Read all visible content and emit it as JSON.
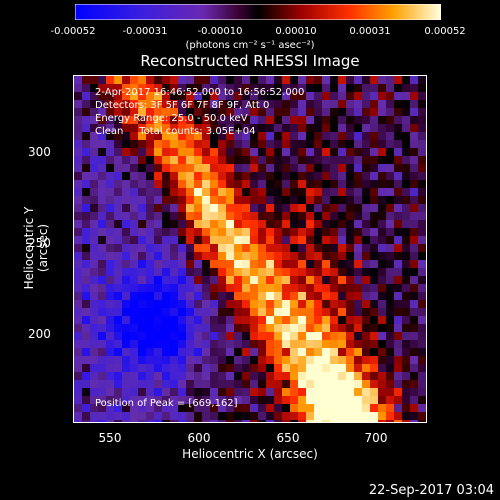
{
  "colorbar": {
    "ticks": [
      "-0.00052",
      "-0.00031",
      "-0.00010",
      "0.00010",
      "0.00031",
      "0.00052"
    ],
    "units": "(photons cm⁻² s⁻¹ asec⁻²)"
  },
  "title": "Reconstructed RHESSI Image",
  "info": {
    "time": "2-Apr-2017 16:46:52.000 to 16:56:52.000",
    "detectors": "Detectors: 3F 5F 6F 7F 8F 9F, Att 0",
    "energy": "Energy Range: 25.0 - 50.0 keV",
    "clean": "Clean     Total counts: 3.05E+04"
  },
  "peak": "Position of Peak = [669,162]",
  "axes": {
    "xlabel": "Heliocentric X (arcsec)",
    "ylabel": "Heliocentric Y (arcsec)",
    "xticks": [
      "550",
      "600",
      "650",
      "700"
    ],
    "yticks": [
      "300",
      "250",
      "200"
    ]
  },
  "timestamp": "22-Sep-2017 03:04"
}
